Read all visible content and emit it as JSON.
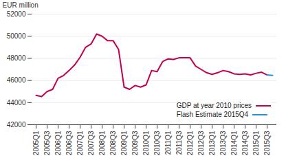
{
  "chart_data": {
    "type": "line",
    "y_label": "EUR million",
    "categories": [
      "2005Q1",
      null,
      "2005Q3",
      null,
      "2006Q1",
      null,
      "2006Q3",
      null,
      "2007Q1",
      null,
      "2007Q3",
      null,
      "2008Q1",
      null,
      "2008Q3",
      null,
      "2009Q1",
      null,
      "2009Q3",
      null,
      "2010Q1",
      null,
      "2010Q3",
      null,
      "2011Q1",
      null,
      "2011Q3",
      null,
      "2012Q1",
      null,
      "2012Q3",
      null,
      "2013Q1",
      null,
      "2013Q3",
      null,
      "2014Q1",
      null,
      "2014Q3",
      null,
      "2015Q1",
      null,
      "2015Q3",
      null
    ],
    "series": [
      {
        "name": "GDP at year 2010 prices",
        "color": "#c3004f",
        "values": [
          44650,
          44550,
          45000,
          45200,
          46200,
          46450,
          46900,
          47400,
          48100,
          49000,
          49300,
          50200,
          50000,
          49600,
          49600,
          48800,
          45400,
          45200,
          45550,
          45400,
          45600,
          46900,
          46800,
          47700,
          47950,
          47900,
          48050,
          48050,
          48050,
          47300,
          47000,
          46700,
          46550,
          46700,
          46900,
          46800,
          46600,
          46550,
          46600,
          46500,
          46650,
          46750,
          46500,
          null
        ]
      },
      {
        "name": "Flash Estimate 2015Q4",
        "color": "#2b8fd6",
        "values": [
          null,
          null,
          null,
          null,
          null,
          null,
          null,
          null,
          null,
          null,
          null,
          null,
          null,
          null,
          null,
          null,
          null,
          null,
          null,
          null,
          null,
          null,
          null,
          null,
          null,
          null,
          null,
          null,
          null,
          null,
          null,
          null,
          null,
          null,
          null,
          null,
          null,
          null,
          null,
          null,
          null,
          null,
          46500,
          46450
        ]
      }
    ],
    "ylim": [
      42000,
      52000
    ],
    "yticks": [
      42000,
      44000,
      46000,
      48000,
      50000,
      52000
    ],
    "grid": true,
    "legend": "bottom-right"
  }
}
